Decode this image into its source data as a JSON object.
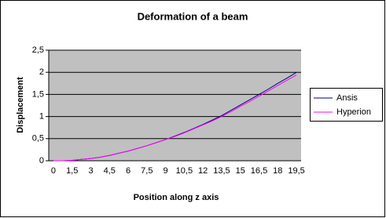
{
  "chart_data": {
    "type": "line",
    "title": "Deformation of a beam",
    "x_label": "Position along z axis",
    "y_label": "Displacement",
    "categories": [
      "0",
      null,
      "1,5",
      null,
      "3",
      null,
      "4,5",
      null,
      "6",
      null,
      "7,5",
      null,
      "9",
      null,
      "10,5",
      null,
      "12",
      null,
      "13,5",
      null,
      "15",
      null,
      "16,5",
      null,
      "18",
      null,
      "19,5"
    ],
    "series": [
      {
        "name": "Ansis",
        "color": "#000080",
        "values": [
          0,
          0,
          0.01,
          0.03,
          0.05,
          0.08,
          0.12,
          0.17,
          0.22,
          0.28,
          0.34,
          0.41,
          0.48,
          0.56,
          0.64,
          0.73,
          0.82,
          0.92,
          1.02,
          1.14,
          1.26,
          1.38,
          1.5,
          1.62,
          1.75,
          1.87,
          2.0
        ]
      },
      {
        "name": "Hyperion",
        "color": "#ff00ff",
        "values": [
          0,
          0,
          0.01,
          0.03,
          0.05,
          0.08,
          0.12,
          0.17,
          0.22,
          0.28,
          0.34,
          0.41,
          0.48,
          0.55,
          0.63,
          0.72,
          0.81,
          0.9,
          1.0,
          1.11,
          1.23,
          1.34,
          1.46,
          1.58,
          1.7,
          1.82,
          1.94
        ]
      }
    ],
    "ylim": [
      0,
      2.5
    ],
    "yticks": [
      0,
      {
        "value": 0.5,
        "label": "0,5"
      },
      1,
      {
        "value": 1.5,
        "label": "1,5"
      },
      2,
      {
        "value": 2.5,
        "label": "2,5"
      }
    ],
    "grid": true,
    "legend": "right"
  }
}
